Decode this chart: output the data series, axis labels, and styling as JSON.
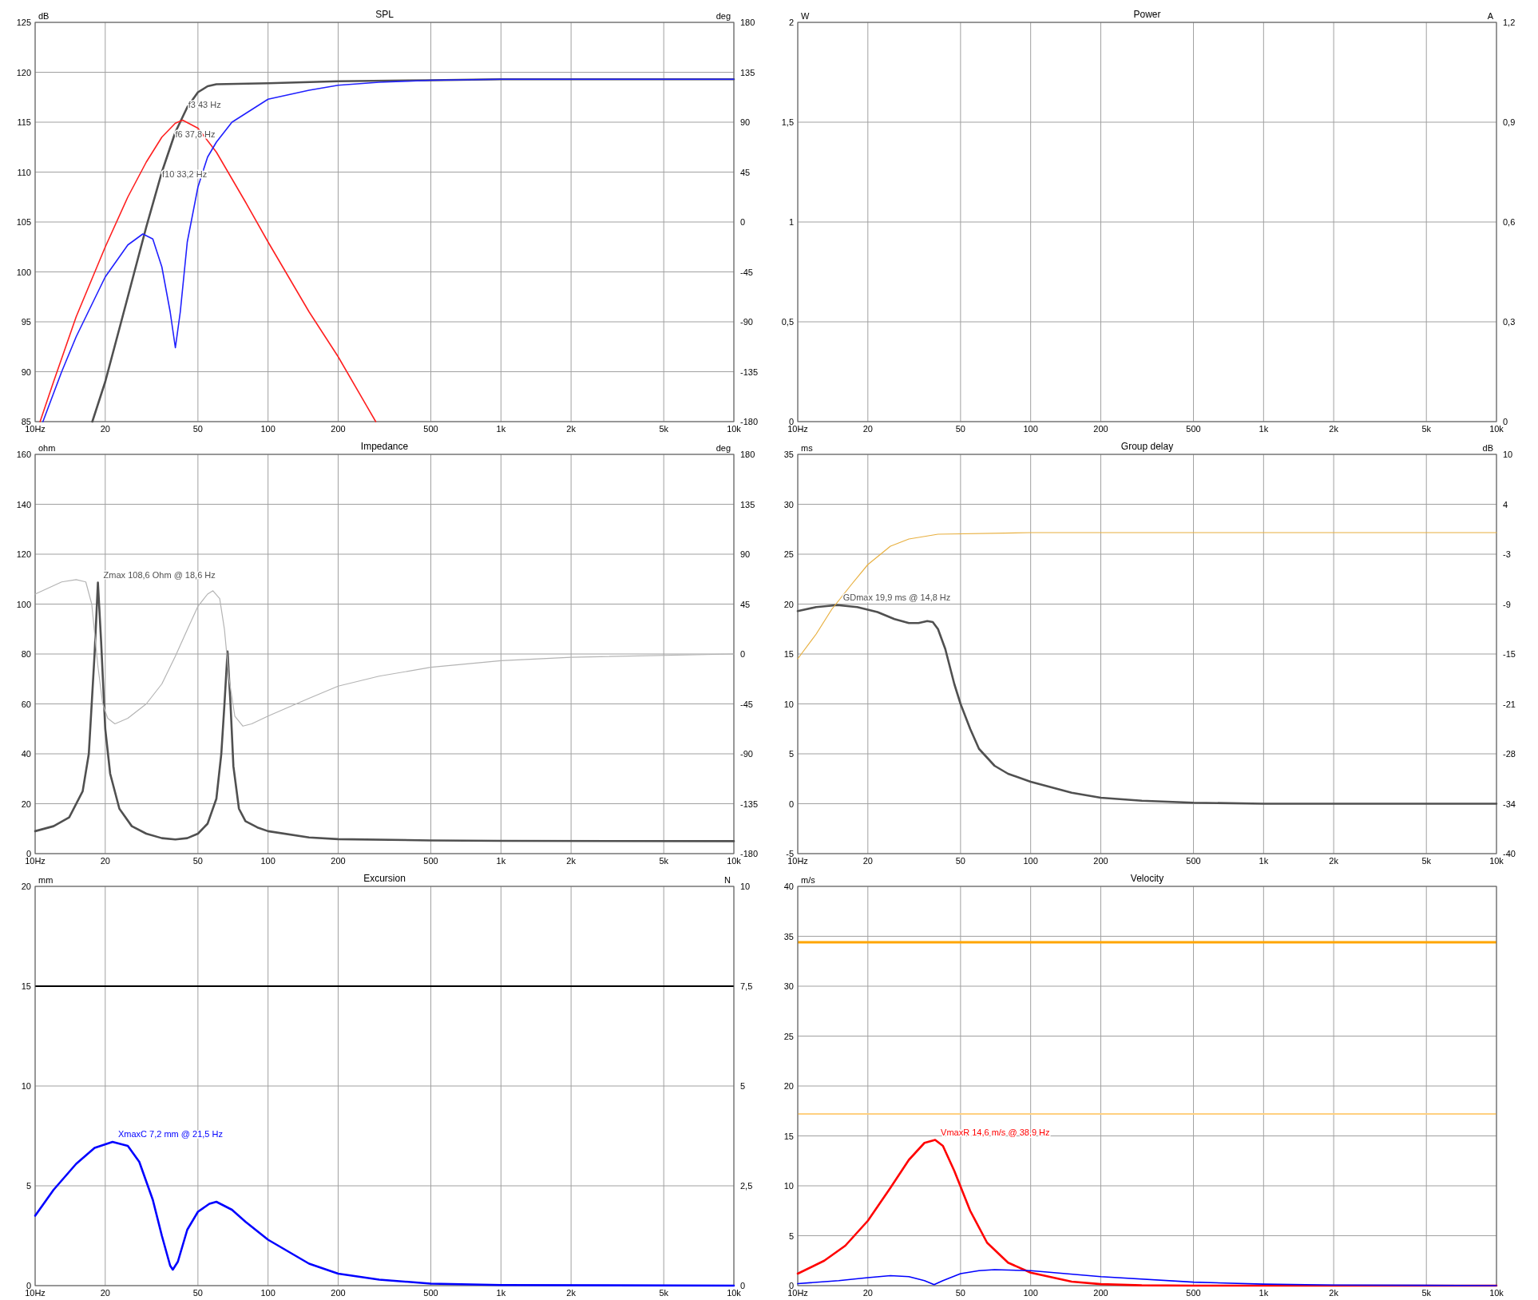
{
  "chart_data": [
    {
      "type": "line",
      "title": "SPL",
      "ylabel": "dB",
      "y2label": "deg",
      "log": "x",
      "grid": true,
      "xlim": [
        10,
        10000
      ],
      "xticks": [
        {
          "value": 10,
          "label": "10Hz"
        },
        20,
        50,
        100,
        200,
        500,
        {
          "value": 1000,
          "label": "1k"
        },
        {
          "value": 2000,
          "label": "2k"
        },
        {
          "value": 5000,
          "label": "5k"
        },
        {
          "value": 10000,
          "label": "10k"
        }
      ],
      "ylim": [
        85,
        125
      ],
      "yticks": [
        85,
        90,
        95,
        100,
        105,
        110,
        115,
        120,
        125
      ],
      "y2lim": [
        -180,
        180
      ],
      "y2ticks": [
        -180,
        -135,
        -90,
        -45,
        0,
        45,
        90,
        135,
        180
      ],
      "series": [
        {
          "color": "#505050",
          "x": [
            17.6,
            20,
            25,
            30,
            35,
            40,
            45,
            50,
            55,
            60,
            100,
            200,
            500,
            1000,
            10000
          ],
          "values": [
            85,
            89,
            97.5,
            104.5,
            110,
            114,
            116.5,
            118,
            118.6,
            118.8,
            118.9,
            119.1,
            119.2,
            119.3,
            119.3
          ]
        },
        {
          "color": "#ff2020",
          "x": [
            10.5,
            12,
            15,
            20,
            25,
            30,
            35,
            40,
            43,
            50,
            60,
            80,
            100,
            150,
            200,
            290
          ],
          "values": [
            85,
            89,
            95.5,
            102.5,
            107.5,
            111,
            113.5,
            114.9,
            115.2,
            114.4,
            112,
            107,
            103,
            96,
            91.5,
            85
          ]
        },
        {
          "color": "#2020ff",
          "x": [
            10.8,
            13,
            15,
            20,
            25,
            29,
            32,
            35,
            38,
            40,
            42,
            45,
            50,
            55,
            60,
            70,
            100,
            150,
            200,
            300,
            500,
            1000,
            10000
          ],
          "values": [
            85,
            90,
            93.5,
            99.5,
            102.7,
            103.8,
            103.3,
            100.5,
            96,
            92.4,
            96,
            103,
            108.5,
            111.5,
            113,
            115,
            117.3,
            118.2,
            118.7,
            119,
            119.2,
            119.3,
            119.3
          ]
        }
      ],
      "annotations": [
        {
          "text": "f3 43 Hz",
          "x": 43,
          "y": 116
        },
        {
          "text": "f6 37,8 Hz",
          "x": 37.8,
          "y": 113
        },
        {
          "text": "f10 33,2 Hz",
          "x": 33.2,
          "y": 109
        }
      ]
    },
    {
      "type": "line",
      "title": "Power",
      "ylabel": "W",
      "y2label": "A",
      "log": "x",
      "grid": true,
      "xlim": [
        10,
        10000
      ],
      "xticks": [
        {
          "value": 10,
          "label": "10Hz"
        },
        20,
        50,
        100,
        200,
        500,
        {
          "value": 1000,
          "label": "1k"
        },
        {
          "value": 2000,
          "label": "2k"
        },
        {
          "value": 5000,
          "label": "5k"
        },
        {
          "value": 10000,
          "label": "10k"
        }
      ],
      "ylim": [
        0,
        2
      ],
      "yticks": [
        0,
        {
          "value": 0.5,
          "label": "0,5"
        },
        1,
        {
          "value": 1.5,
          "label": "1,5"
        },
        2
      ],
      "y2lim": [
        0,
        1.2
      ],
      "y2ticks": [
        0,
        {
          "value": 0.3,
          "label": "0,3"
        },
        {
          "value": 0.6,
          "label": "0,6"
        },
        {
          "value": 0.9,
          "label": "0,9"
        },
        {
          "value": 1.2,
          "label": "1,2"
        }
      ]
    },
    {
      "type": "line",
      "title": "Impedance",
      "ylabel": "ohm",
      "y2label": "deg",
      "log": "x",
      "grid": true,
      "xlim": [
        10,
        10000
      ],
      "xticks": [
        {
          "value": 10,
          "label": "10Hz"
        },
        20,
        50,
        100,
        200,
        500,
        {
          "value": 1000,
          "label": "1k"
        },
        {
          "value": 2000,
          "label": "2k"
        },
        {
          "value": 5000,
          "label": "5k"
        },
        {
          "value": 10000,
          "label": "10k"
        }
      ],
      "ylim": [
        0,
        160
      ],
      "yticks": [
        0,
        20,
        40,
        60,
        80,
        100,
        120,
        140,
        160
      ],
      "y2lim": [
        -180,
        180
      ],
      "y2ticks": [
        -180,
        -135,
        -90,
        -45,
        0,
        45,
        90,
        135,
        180
      ],
      "series": [
        {
          "color": "#505050",
          "x": [
            10,
            12,
            14,
            16,
            17,
            18,
            18.6,
            19.2,
            20,
            21,
            23,
            26,
            30,
            35,
            40,
            45,
            50,
            55,
            60,
            63,
            65,
            67,
            69,
            71,
            75,
            80,
            90,
            100,
            150,
            200,
            500,
            1000,
            10000
          ],
          "values": [
            9,
            11,
            14.5,
            25,
            40,
            80,
            108.6,
            85,
            50,
            32,
            18,
            11,
            8,
            6.2,
            5.7,
            6.2,
            8,
            12,
            22,
            40,
            60,
            81,
            60,
            35,
            18,
            13,
            10.5,
            9,
            6.5,
            5.8,
            5.3,
            5.1,
            5
          ]
        },
        {
          "color": "#b4b4b4",
          "axis": "y2",
          "x": [
            10,
            13,
            15,
            16.5,
            17.5,
            18.6,
            19.5,
            20.5,
            22,
            25,
            30,
            35,
            40,
            45,
            50,
            55,
            58,
            62,
            65,
            68,
            72,
            78,
            85,
            100,
            150,
            200,
            300,
            500,
            1000,
            2000,
            10000
          ],
          "values": [
            54,
            65,
            67,
            65,
            45,
            -11,
            -45,
            -58,
            -63,
            -58,
            -45,
            -27,
            -2,
            22,
            43,
            54,
            57,
            50,
            22,
            -22,
            -56,
            -65,
            -63,
            -56,
            -40,
            -29,
            -20,
            -12,
            -6,
            -3,
            0
          ]
        }
      ],
      "annotations": [
        {
          "text": "Zmax 108,6 Ohm @ 18,6 Hz",
          "x": 18.6,
          "y": 108.6
        }
      ]
    },
    {
      "type": "line",
      "title": "Group delay",
      "ylabel": "ms",
      "y2label": "dB",
      "log": "x",
      "grid": true,
      "xlim": [
        10,
        10000
      ],
      "xticks": [
        {
          "value": 10,
          "label": "10Hz"
        },
        20,
        50,
        100,
        200,
        500,
        {
          "value": 1000,
          "label": "1k"
        },
        {
          "value": 2000,
          "label": "2k"
        },
        {
          "value": 5000,
          "label": "5k"
        },
        {
          "value": 10000,
          "label": "10k"
        }
      ],
      "ylim": [
        -5,
        35
      ],
      "yticks": [
        -5,
        0,
        5,
        10,
        15,
        20,
        25,
        30,
        35
      ],
      "y2lim": [
        -40,
        10
      ],
      "y2ticks": [
        -40,
        {
          "value": -33.75,
          "label": "-34"
        },
        {
          "value": -27.5,
          "label": "-28"
        },
        {
          "value": -21.25,
          "label": "-21"
        },
        -15,
        {
          "value": -8.75,
          "label": "-9"
        },
        {
          "value": -2.5,
          "label": "-3"
        },
        {
          "value": 3.75,
          "label": "4"
        },
        10
      ],
      "series": [
        {
          "color": "#505050",
          "x": [
            10,
            12,
            14.8,
            18,
            22,
            26,
            30,
            33,
            36,
            38,
            40,
            43,
            47,
            50,
            55,
            60,
            70,
            80,
            100,
            150,
            200,
            300,
            500,
            1000,
            10000
          ],
          "values": [
            19.3,
            19.7,
            19.9,
            19.7,
            19.2,
            18.5,
            18.1,
            18.1,
            18.3,
            18.2,
            17.5,
            15.5,
            12,
            10,
            7.5,
            5.5,
            3.8,
            3,
            2.2,
            1.1,
            0.6,
            0.3,
            0.1,
            0,
            0
          ]
        },
        {
          "color": "#e8b040",
          "axis": "y2",
          "x": [
            10,
            12,
            14,
            17,
            20,
            25,
            30,
            40,
            100,
            10000
          ],
          "values": [
            -15.6,
            -12.5,
            -9.4,
            -6.3,
            -3.8,
            -1.5,
            -0.6,
            0,
            0.2,
            0.2
          ]
        }
      ],
      "annotations": [
        {
          "text": "GDmax 19,9 ms  @ 14,8 Hz",
          "x": 14.8,
          "y": 19.9
        }
      ]
    },
    {
      "type": "line",
      "title": "Excursion",
      "ylabel": "mm",
      "y2label": "N",
      "log": "x",
      "grid": true,
      "xlim": [
        10,
        10000
      ],
      "xticks": [
        {
          "value": 10,
          "label": "10Hz"
        },
        20,
        50,
        100,
        200,
        500,
        {
          "value": 1000,
          "label": "1k"
        },
        {
          "value": 2000,
          "label": "2k"
        },
        {
          "value": 5000,
          "label": "5k"
        },
        {
          "value": 10000,
          "label": "10k"
        }
      ],
      "ylim": [
        0,
        20
      ],
      "yticks": [
        0,
        5,
        10,
        15,
        20
      ],
      "y2lim": [
        0,
        10
      ],
      "y2ticks": [
        0,
        {
          "value": 2.5,
          "label": "2,5"
        },
        5,
        {
          "value": 7.5,
          "label": "7,5"
        },
        10
      ],
      "series": [
        {
          "color": "#0000ff",
          "x": [
            10,
            12,
            15,
            18,
            21.5,
            25,
            28,
            32,
            35,
            38,
            39,
            41,
            45,
            50,
            56,
            60,
            70,
            80,
            100,
            150,
            200,
            300,
            500,
            1000,
            10000
          ],
          "values": [
            3.5,
            4.8,
            6.1,
            6.9,
            7.2,
            7,
            6.2,
            4.3,
            2.5,
            1,
            0.8,
            1.2,
            2.8,
            3.7,
            4.1,
            4.2,
            3.8,
            3.2,
            2.3,
            1.1,
            0.6,
            0.3,
            0.1,
            0.03,
            0
          ]
        }
      ],
      "ref_lines": [
        {
          "axis": "y",
          "value": 15,
          "color": "#000000"
        }
      ],
      "annotations": [
        {
          "text": "XmaxC 7,2 mm  @ 21,5 Hz",
          "x": 21.5,
          "y": 7.2
        }
      ]
    },
    {
      "type": "line",
      "title": "Velocity",
      "ylabel": "m/s",
      "log": "x",
      "grid": true,
      "xlim": [
        10,
        10000
      ],
      "xticks": [
        {
          "value": 10,
          "label": "10Hz"
        },
        20,
        50,
        100,
        200,
        500,
        {
          "value": 1000,
          "label": "1k"
        },
        {
          "value": 2000,
          "label": "2k"
        },
        {
          "value": 5000,
          "label": "5k"
        },
        {
          "value": 10000,
          "label": "10k"
        }
      ],
      "ylim": [
        0,
        40
      ],
      "yticks": [
        0,
        5,
        10,
        15,
        20,
        25,
        30,
        35,
        40
      ],
      "series": [
        {
          "color": "#ff0000",
          "x": [
            10,
            13,
            16,
            20,
            25,
            30,
            35,
            38.9,
            42,
            47,
            55,
            65,
            80,
            100,
            150,
            200,
            300,
            500,
            10000
          ],
          "values": [
            1.2,
            2.5,
            4,
            6.5,
            9.8,
            12.6,
            14.3,
            14.6,
            14,
            11.5,
            7.5,
            4.3,
            2.3,
            1.3,
            0.4,
            0.15,
            0.03,
            0,
            0
          ]
        },
        {
          "color": "#0000ff",
          "x": [
            10,
            15,
            20,
            25,
            30,
            35,
            38.5,
            42,
            50,
            60,
            70,
            100,
            200,
            500,
            1000,
            2000,
            10000
          ],
          "values": [
            0.2,
            0.5,
            0.8,
            1,
            0.9,
            0.5,
            0.1,
            0.5,
            1.2,
            1.5,
            1.6,
            1.5,
            0.9,
            0.35,
            0.15,
            0.06,
            0
          ]
        }
      ],
      "ref_lines": [
        {
          "axis": "y",
          "value": 34.4,
          "color": "#ffa500"
        },
        {
          "axis": "y",
          "value": 17.2,
          "color": "#ffd080"
        }
      ],
      "annotations": [
        {
          "text": "VmaxR 14,6 m/s @ 38,9 Hz",
          "x": 38.9,
          "y": 14.6
        }
      ]
    }
  ]
}
